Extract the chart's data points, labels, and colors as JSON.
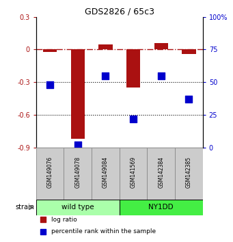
{
  "title": "GDS2826 / 65c3",
  "samples": [
    "GSM149076",
    "GSM149078",
    "GSM149084",
    "GSM141569",
    "GSM142384",
    "GSM142385"
  ],
  "log_ratio": [
    -0.02,
    -0.82,
    0.05,
    -0.35,
    0.06,
    -0.04
  ],
  "percentile_rank": [
    48,
    2,
    55,
    22,
    55,
    37
  ],
  "groups": [
    {
      "label": "wild type",
      "start": 0,
      "end": 3,
      "color": "#aaffaa"
    },
    {
      "label": "NY1DD",
      "start": 3,
      "end": 6,
      "color": "#44ee44"
    }
  ],
  "ylim_left": [
    -0.9,
    0.3
  ],
  "ylim_right": [
    0,
    100
  ],
  "yticks_left": [
    -0.9,
    -0.6,
    -0.3,
    0.0,
    0.3
  ],
  "ytick_labels_left": [
    "-0.9",
    "-0.6",
    "-0.3",
    "0",
    "0.3"
  ],
  "yticks_right": [
    0,
    25,
    50,
    75,
    100
  ],
  "ytick_labels_right": [
    "0",
    "25",
    "50",
    "75",
    "100%"
  ],
  "dotted_lines": [
    -0.3,
    -0.6
  ],
  "bar_color": "#aa1111",
  "square_color": "#0000cc",
  "bar_width": 0.5,
  "strain_label": "strain",
  "legend_items": [
    {
      "color": "#aa1111",
      "label": "log ratio"
    },
    {
      "color": "#0000cc",
      "label": "percentile rank within the sample"
    }
  ],
  "background_color": "#ffffff"
}
